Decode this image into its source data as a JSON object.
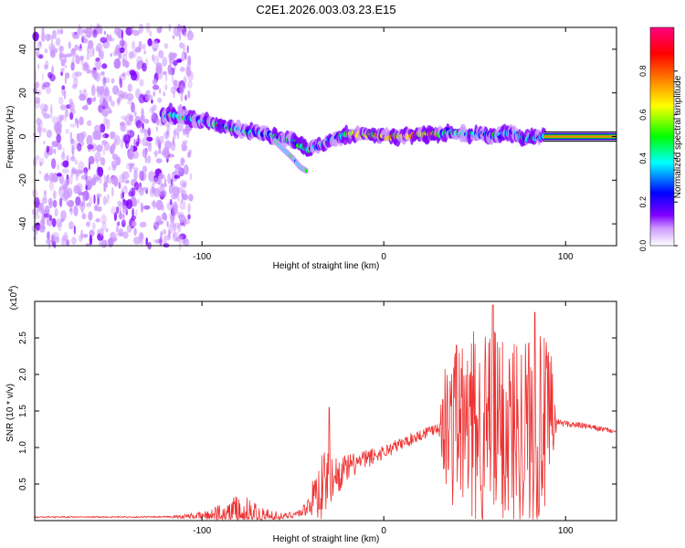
{
  "title": "C2E1.2026.003.03.23.E15",
  "chart_data": [
    {
      "type": "heatmap",
      "xlabel": "Height of straight line (km)",
      "ylabel": "Frequency (Hz)",
      "xlim": [
        -192,
        128
      ],
      "ylim": [
        -50,
        50
      ],
      "x_ticks": [
        -100,
        0,
        100
      ],
      "x_tick_labels": [
        "-100",
        "0",
        "100"
      ],
      "y_ticks": [
        -40,
        -20,
        0,
        20,
        40
      ],
      "y_tick_labels": [
        "-40",
        "-20",
        "0",
        "20",
        "40"
      ],
      "noise_region_x": [
        -192,
        -106
      ],
      "ridge": {
        "x": [
          -122,
          -110,
          -100,
          -90,
          -80,
          -70,
          -60,
          -50,
          -42,
          -35,
          -28,
          -20,
          -10,
          0,
          10,
          20,
          28,
          35,
          45,
          55,
          62,
          70,
          78,
          84,
          88,
          128
        ],
        "y": [
          10,
          9,
          7,
          5,
          3,
          2,
          0,
          -2,
          -6,
          -4,
          -1,
          1,
          1,
          0,
          0,
          1,
          1,
          2,
          1,
          1,
          0,
          2,
          -1,
          0,
          0,
          0
        ]
      },
      "branch": {
        "x": [
          -60,
          -55,
          -50,
          -46,
          -42
        ],
        "y": [
          -2,
          -6,
          -10,
          -14,
          -16
        ]
      },
      "stable_line": {
        "x_start": 88,
        "x_end": 128,
        "y": 0
      },
      "colorbar": {
        "label": "Normalized spectral amplitude",
        "range": [
          0,
          1
        ],
        "ticks": [
          0.0,
          0.2,
          0.4,
          0.6,
          0.8
        ],
        "tick_labels": [
          "0.0",
          "0.2",
          "0.4",
          "0.6",
          "0.8"
        ],
        "colors": [
          "#ffffff",
          "#cc99ff",
          "#8000ff",
          "#0000ff",
          "#00ffff",
          "#00ff00",
          "#ffff00",
          "#ff8000",
          "#ff0000",
          "#ff0080"
        ]
      }
    },
    {
      "type": "line",
      "xlabel": "Height of straight line (km)",
      "ylabel": "SNR (10 * v/v)",
      "y_multiplier_label": "(x10",
      "y_multiplier_exp": "4",
      "y_multiplier_close": ")",
      "xlim": [
        -192,
        128
      ],
      "ylim": [
        0,
        3.0
      ],
      "x_ticks": [
        -100,
        0,
        100
      ],
      "x_tick_labels": [
        "-100",
        "0",
        "100"
      ],
      "y_ticks": [
        0.5,
        1.0,
        1.5,
        2.0,
        2.5
      ],
      "y_tick_labels": [
        "0.5",
        "1.0",
        "1.5",
        "2.0",
        "2.5"
      ],
      "line_color": "#ee3333",
      "envelope": {
        "x": [
          -192,
          -120,
          -100,
          -90,
          -80,
          -70,
          -60,
          -55,
          -45,
          -40,
          -34,
          -30,
          -25,
          -15,
          0,
          20,
          30,
          34,
          40,
          55,
          70,
          85,
          92,
          95,
          110,
          128
        ],
        "base": [
          0.05,
          0.05,
          0.07,
          0.1,
          0.1,
          0.07,
          0.05,
          0.06,
          0.12,
          0.28,
          0.55,
          0.6,
          0.66,
          0.8,
          0.95,
          1.18,
          1.3,
          1.4,
          1.4,
          1.4,
          1.4,
          1.4,
          1.4,
          1.35,
          1.3,
          1.22
        ],
        "amp": [
          0.01,
          0.01,
          0.05,
          0.15,
          0.3,
          0.25,
          0.1,
          0.04,
          0.06,
          0.2,
          0.55,
          0.35,
          0.25,
          0.15,
          0.1,
          0.08,
          0.1,
          0.9,
          1.2,
          1.4,
          1.35,
          1.35,
          1.1,
          0.05,
          0.04,
          0.03
        ]
      },
      "peaks": [
        {
          "x": 60,
          "y": 2.95
        },
        {
          "x": 83,
          "y": 2.85
        },
        {
          "x": 40,
          "y": 2.4
        },
        {
          "x": -30,
          "y": 1.55
        }
      ]
    }
  ]
}
